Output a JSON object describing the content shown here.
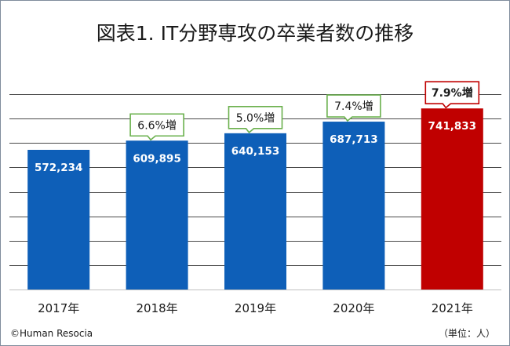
{
  "chart_data": {
    "type": "bar",
    "title": "図表1. IT分野専攻の卒業者数の推移",
    "categories": [
      "2017年",
      "2018年",
      "2019年",
      "2020年",
      "2021年"
    ],
    "values": [
      572234,
      609895,
      640153,
      687713,
      741833
    ],
    "value_labels": [
      "572,234",
      "609,895",
      "640,153",
      "687,713",
      "741,833"
    ],
    "growth_labels": [
      "",
      "6.6%増",
      "5.0%増",
      "7.4%増",
      "7.9%増"
    ],
    "highlight_index": 4,
    "ylim": [
      0,
      900000
    ],
    "gridline_step": 100000,
    "grid": true,
    "unit_note": "（単位：人）",
    "credit": "©Human Resocia",
    "colors": {
      "bar": "#0e5fb8",
      "bar_highlight": "#c00000",
      "callout_border": "#6ab04c",
      "callout_border_highlight": "#c00000",
      "gridline": "#4a4a4a",
      "baseline": "#bfbfbf"
    }
  }
}
